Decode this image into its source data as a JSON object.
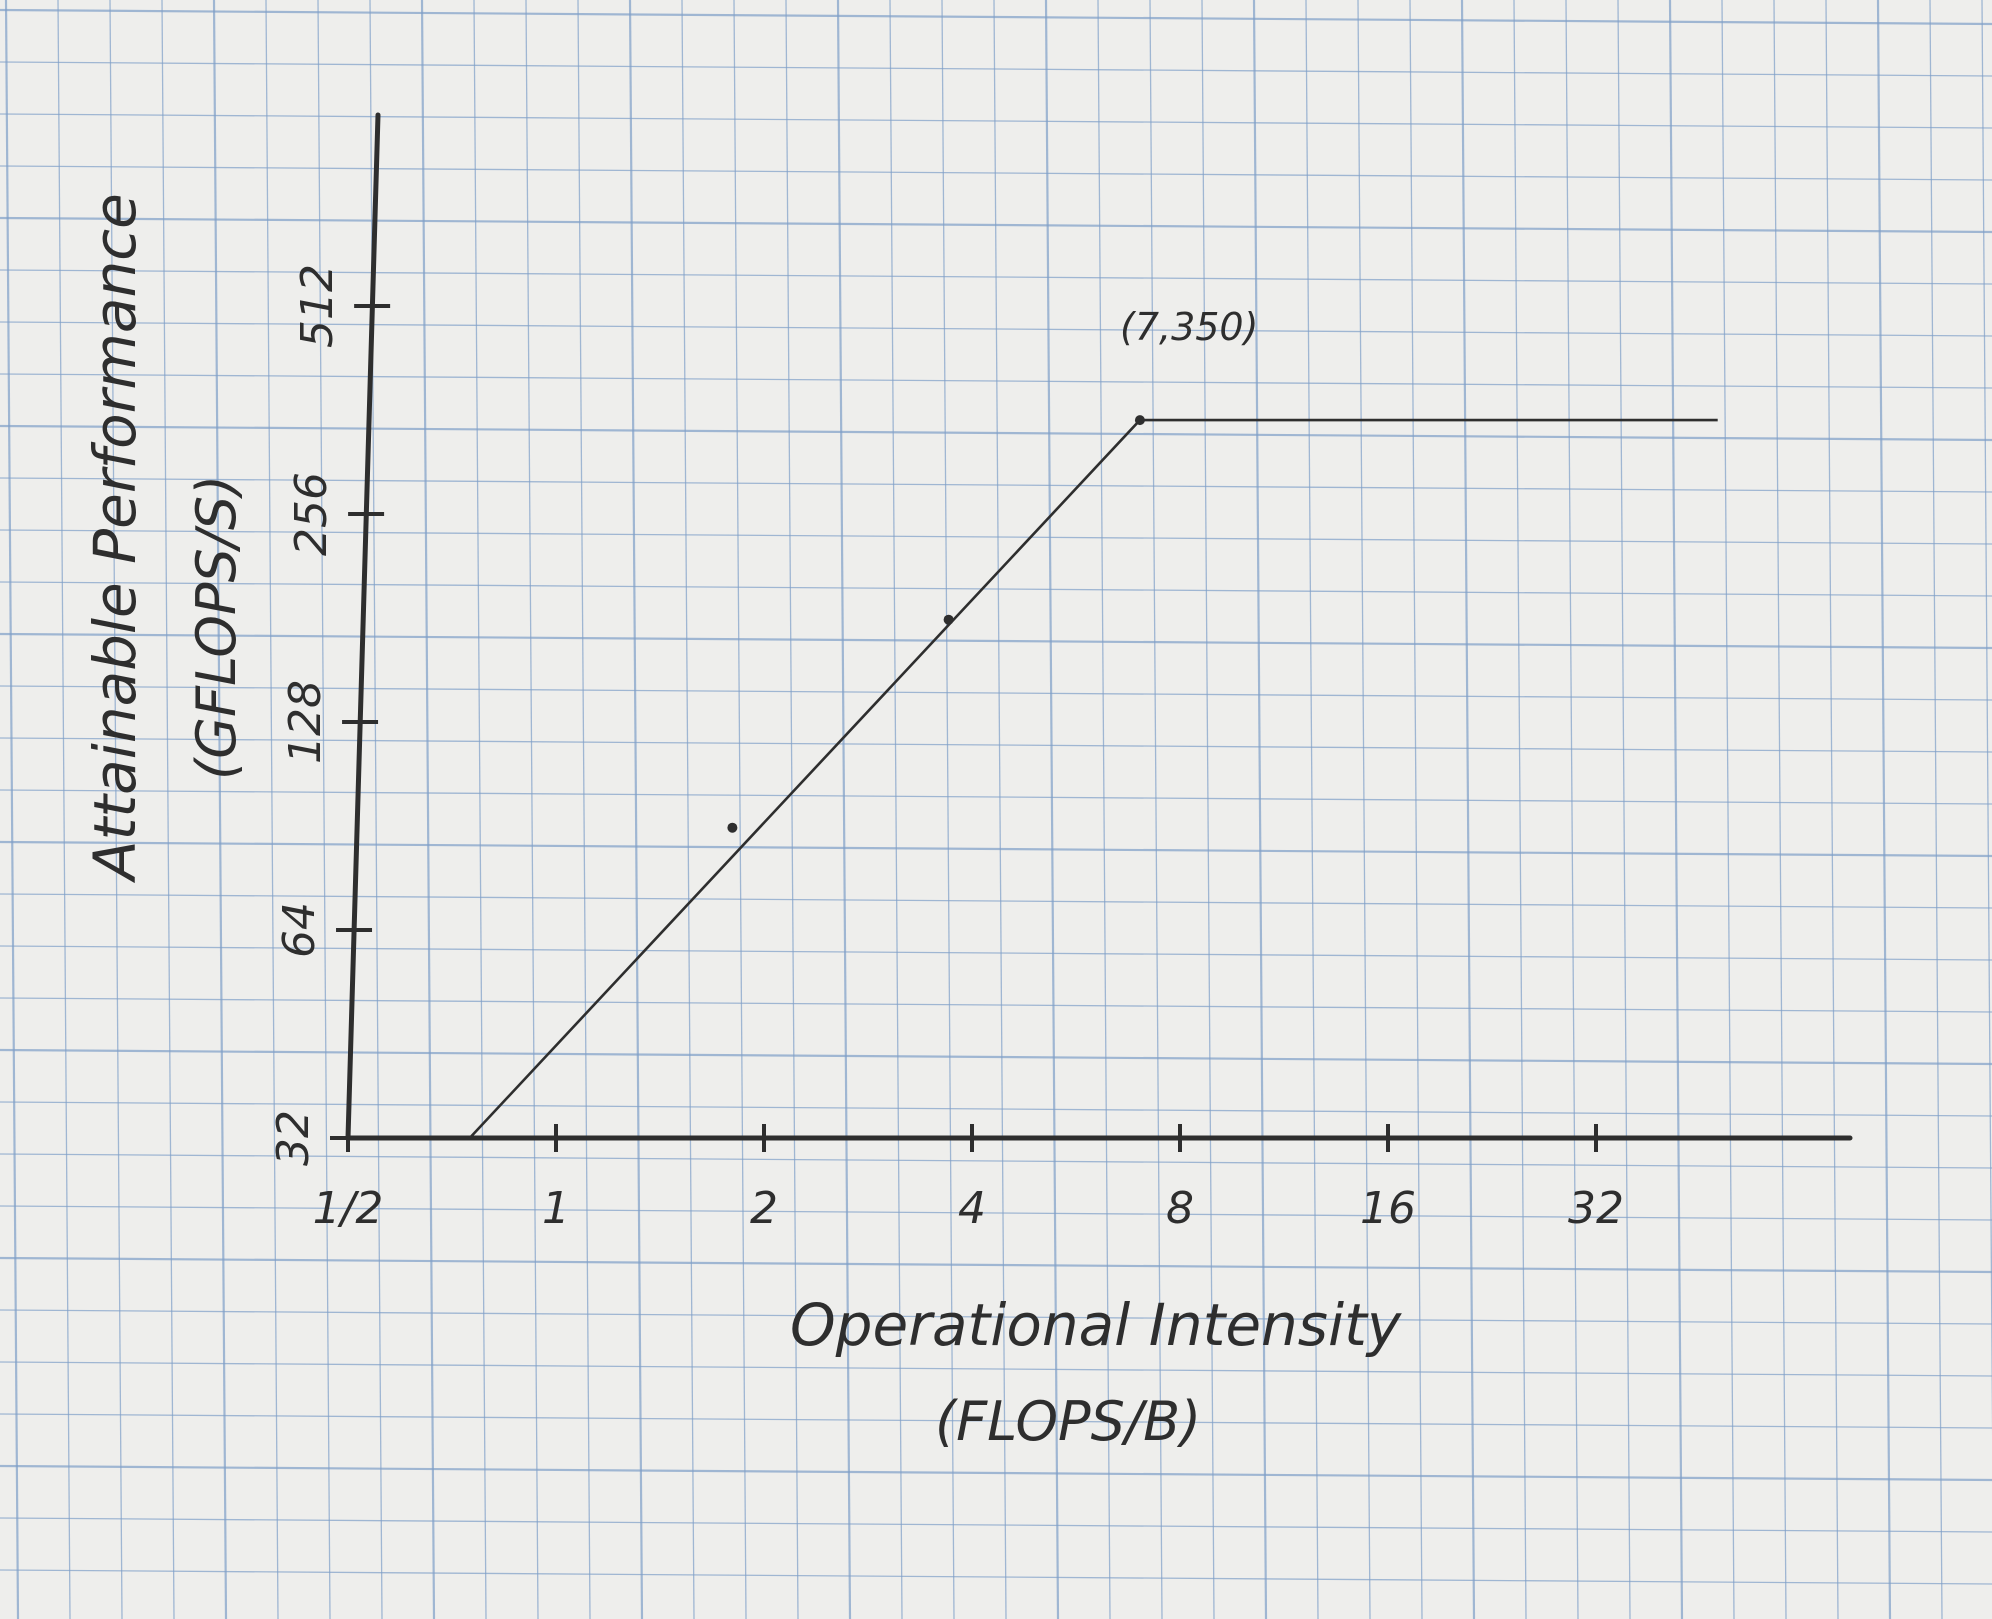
{
  "chart_data": {
    "type": "line",
    "xlabel": "Operational Intensity",
    "xunit": "(FLOPS/B)",
    "ylabel": "Attainable Performance",
    "yunit": "(GFLOPS/S)",
    "x_scale": "log2",
    "y_scale": "log2",
    "x_ticks": [
      {
        "value": 0.5,
        "label": "1/2"
      },
      {
        "value": 1,
        "label": "1"
      },
      {
        "value": 2,
        "label": "2"
      },
      {
        "value": 4,
        "label": "4"
      },
      {
        "value": 8,
        "label": "8"
      },
      {
        "value": 16,
        "label": "16"
      },
      {
        "value": 32,
        "label": "32"
      }
    ],
    "y_ticks": [
      {
        "value": 32,
        "label": "32"
      },
      {
        "value": 64,
        "label": "64"
      },
      {
        "value": 128,
        "label": "128"
      },
      {
        "value": 256,
        "label": "256"
      },
      {
        "value": 512,
        "label": "512"
      }
    ],
    "xlim": [
      0.5,
      64
    ],
    "ylim": [
      32,
      1024
    ],
    "grid": true,
    "series": [
      {
        "x": [
          0.75,
          7,
          48
        ],
        "y": [
          32,
          350,
          350
        ]
      }
    ],
    "points": [
      {
        "x": 1.8,
        "y": 90
      },
      {
        "x": 3.7,
        "y": 180
      },
      {
        "x": 7,
        "y": 350
      }
    ],
    "annotation": {
      "x": 7,
      "y": 350,
      "text": "(7,350)"
    }
  },
  "colors": {
    "paper": "#eeeeec",
    "grid": "#7f9fc8",
    "pencil": "#2e2e2e"
  }
}
